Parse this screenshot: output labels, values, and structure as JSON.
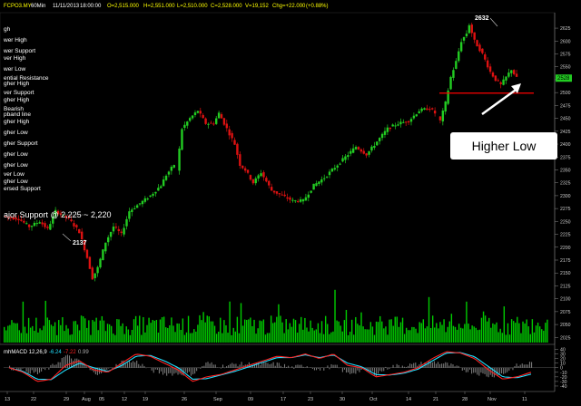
{
  "header": {
    "symbol": "FCPO3.MY",
    "interval": "60Min",
    "date": "11/11/2013",
    "time": "18:00:00",
    "open": "O=2,515.000",
    "high": "H=2,551.000",
    "low": "L=2,510.000",
    "close": "C=2,528.000",
    "volume": "V=19,152",
    "change": "Chg=+22.000",
    "change_pct": "(+0.88%)"
  },
  "left_labels": [
    "gh",
    "wer High",
    "wer Support",
    "ver High",
    "wer Low",
    "ential Resistance",
    "gher High",
    "ver Support",
    "gher High",
    "Bearish",
    "pband line",
    "gher High",
    "gher Low",
    "gher Support",
    "gher Low",
    "gher Low",
    "ver Low",
    "gher Low",
    "ersed Support"
  ],
  "major_support": {
    "text": "ajor Support @ 2,225 ~ 2,220"
  },
  "annotations": {
    "high_label": "2632",
    "low_label": "2137",
    "callout": "Higher Low"
  },
  "macd": {
    "label": "mhMACD 12,26,9",
    "v1": "-6.24",
    "v2": "-7.22",
    "v3": "0.99"
  },
  "colors": {
    "up": "#22cc22",
    "down": "#dd1111",
    "volume": "#00cc00",
    "macd": "#ff2222",
    "signal": "#22e0ff",
    "hist": "#777777",
    "price_tag": "#22cc22",
    "resistance": "#ff0000"
  },
  "chart_data": [
    {
      "type": "candlestick",
      "title": "FCPO3.MY - 60Min",
      "x_ticks": [
        "13",
        "22",
        "29",
        "Aug",
        "05",
        "12",
        "19",
        "26",
        "Sep",
        "09",
        "17",
        "23",
        "30",
        "Oct",
        "14",
        "21",
        "28",
        "Nov",
        "11"
      ],
      "y_ticks": [
        2025,
        2050,
        2075,
        2100,
        2125,
        2150,
        2175,
        2200,
        2225,
        2250,
        2275,
        2300,
        2325,
        2350,
        2375,
        2400,
        2425,
        2450,
        2475,
        2500,
        2525,
        2550,
        2575,
        2600,
        2625
      ],
      "ylim": [
        2015,
        2655
      ],
      "last_price": 2528,
      "horizontal_line": 2499,
      "path": [
        [
          0,
          2260
        ],
        [
          6,
          2255
        ],
        [
          10,
          2240
        ],
        [
          14,
          2250
        ],
        [
          17,
          2235
        ],
        [
          20,
          2270
        ],
        [
          25,
          2255
        ],
        [
          29,
          2230
        ],
        [
          32,
          2180
        ],
        [
          34,
          2140
        ],
        [
          36,
          2160
        ],
        [
          39,
          2210
        ],
        [
          42,
          2240
        ],
        [
          45,
          2225
        ],
        [
          48,
          2270
        ],
        [
          52,
          2285
        ],
        [
          56,
          2300
        ],
        [
          60,
          2320
        ],
        [
          62,
          2340
        ],
        [
          65,
          2360
        ],
        [
          66,
          2350
        ],
        [
          68,
          2430
        ],
        [
          71,
          2450
        ],
        [
          74,
          2465
        ],
        [
          77,
          2440
        ],
        [
          80,
          2440
        ],
        [
          82,
          2460
        ],
        [
          83,
          2450
        ],
        [
          86,
          2420
        ],
        [
          88,
          2400
        ],
        [
          90,
          2360
        ],
        [
          92,
          2350
        ],
        [
          95,
          2325
        ],
        [
          98,
          2345
        ],
        [
          102,
          2310
        ],
        [
          106,
          2300
        ],
        [
          110,
          2290
        ],
        [
          114,
          2290
        ],
        [
          118,
          2320
        ],
        [
          122,
          2335
        ],
        [
          126,
          2355
        ],
        [
          130,
          2375
        ],
        [
          134,
          2395
        ],
        [
          138,
          2380
        ],
        [
          142,
          2405
        ],
        [
          146,
          2430
        ],
        [
          150,
          2440
        ],
        [
          154,
          2445
        ],
        [
          158,
          2465
        ],
        [
          162,
          2470
        ],
        [
          164,
          2460
        ],
        [
          166,
          2445
        ],
        [
          168,
          2480
        ],
        [
          170,
          2530
        ],
        [
          172,
          2560
        ],
        [
          174,
          2600
        ],
        [
          176,
          2615
        ],
        [
          177,
          2632
        ],
        [
          179,
          2600
        ],
        [
          182,
          2575
        ],
        [
          185,
          2540
        ],
        [
          187,
          2525
        ],
        [
          189,
          2515
        ],
        [
          191,
          2530
        ],
        [
          193,
          2545
        ],
        [
          195,
          2528
        ]
      ]
    },
    {
      "type": "bar",
      "title": "Volume",
      "note": "volume bars under price panel, shown as relative heights"
    },
    {
      "type": "line",
      "title": "mhMACD 12,26,9",
      "y_ticks": [
        40,
        30,
        20,
        10,
        0,
        -10,
        -20,
        -30,
        -40
      ],
      "ylim": [
        -48,
        47
      ],
      "series": [
        {
          "name": "MACD",
          "values": [
            0,
            -10,
            -30,
            -25,
            5,
            15,
            -5,
            -10,
            10,
            30,
            25,
            10,
            -5,
            -30,
            -20,
            -15,
            -5,
            5,
            15,
            25,
            22,
            30,
            20,
            30,
            5,
            0,
            -20,
            -15,
            -10,
            0,
            20,
            35,
            32,
            20,
            -5,
            -25,
            -20,
            -10
          ]
        },
        {
          "name": "Signal",
          "values": [
            0,
            -8,
            -25,
            -26,
            -5,
            10,
            0,
            -8,
            5,
            25,
            27,
            15,
            0,
            -25,
            -24,
            -16,
            -8,
            2,
            12,
            22,
            22,
            28,
            22,
            28,
            10,
            2,
            -15,
            -16,
            -12,
            -3,
            15,
            32,
            33,
            24,
            2,
            -20,
            -22,
            -14
          ]
        }
      ]
    }
  ]
}
